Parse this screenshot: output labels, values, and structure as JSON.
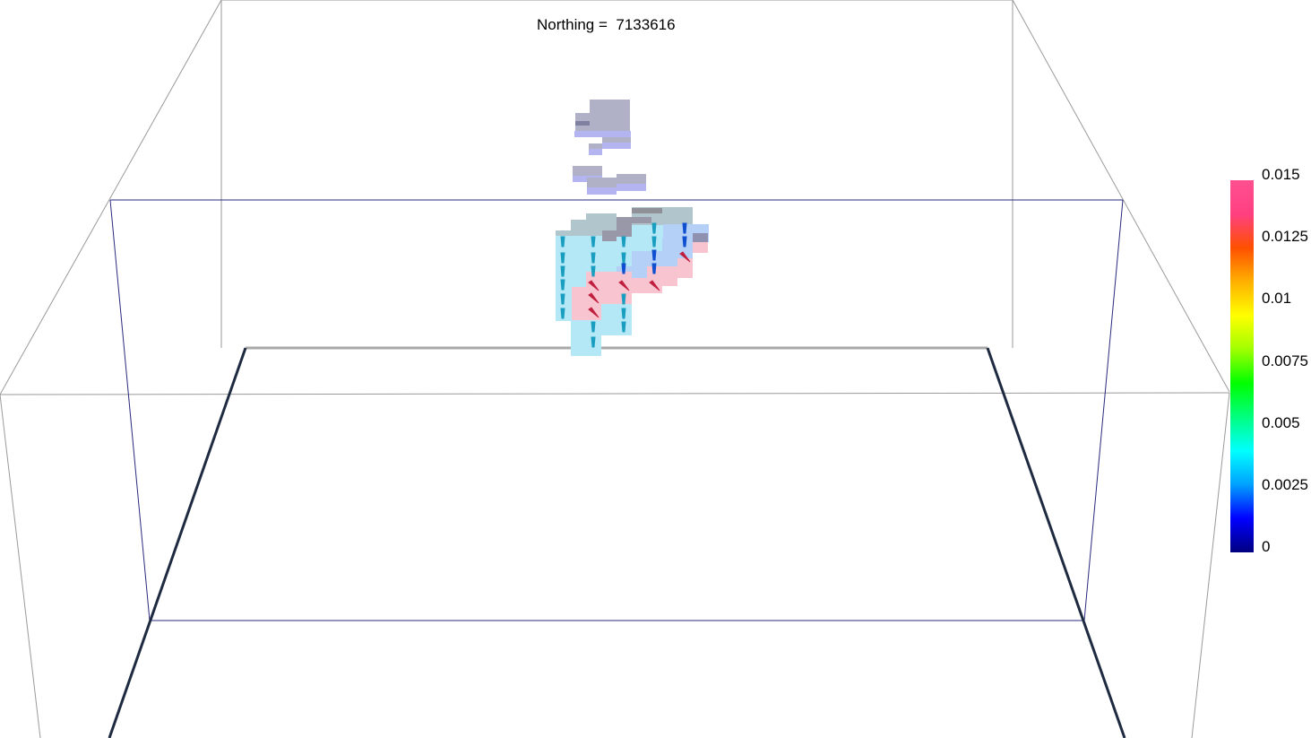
{
  "title": {
    "label": "Northing =",
    "value": "7133616"
  },
  "colorbar": {
    "min": 0,
    "max": 0.015,
    "ticks": [
      "0.015",
      "0.0125",
      "0.01",
      "0.0075",
      "0.005",
      "0.0025",
      "0"
    ],
    "colors": [
      "#000080",
      "#0000ff",
      "#00a0ff",
      "#00ffff",
      "#00ff80",
      "#00ff00",
      "#a0ff00",
      "#ffff00",
      "#ffb000",
      "#ff5000",
      "#ff4080",
      "#ff4f90"
    ]
  }
}
